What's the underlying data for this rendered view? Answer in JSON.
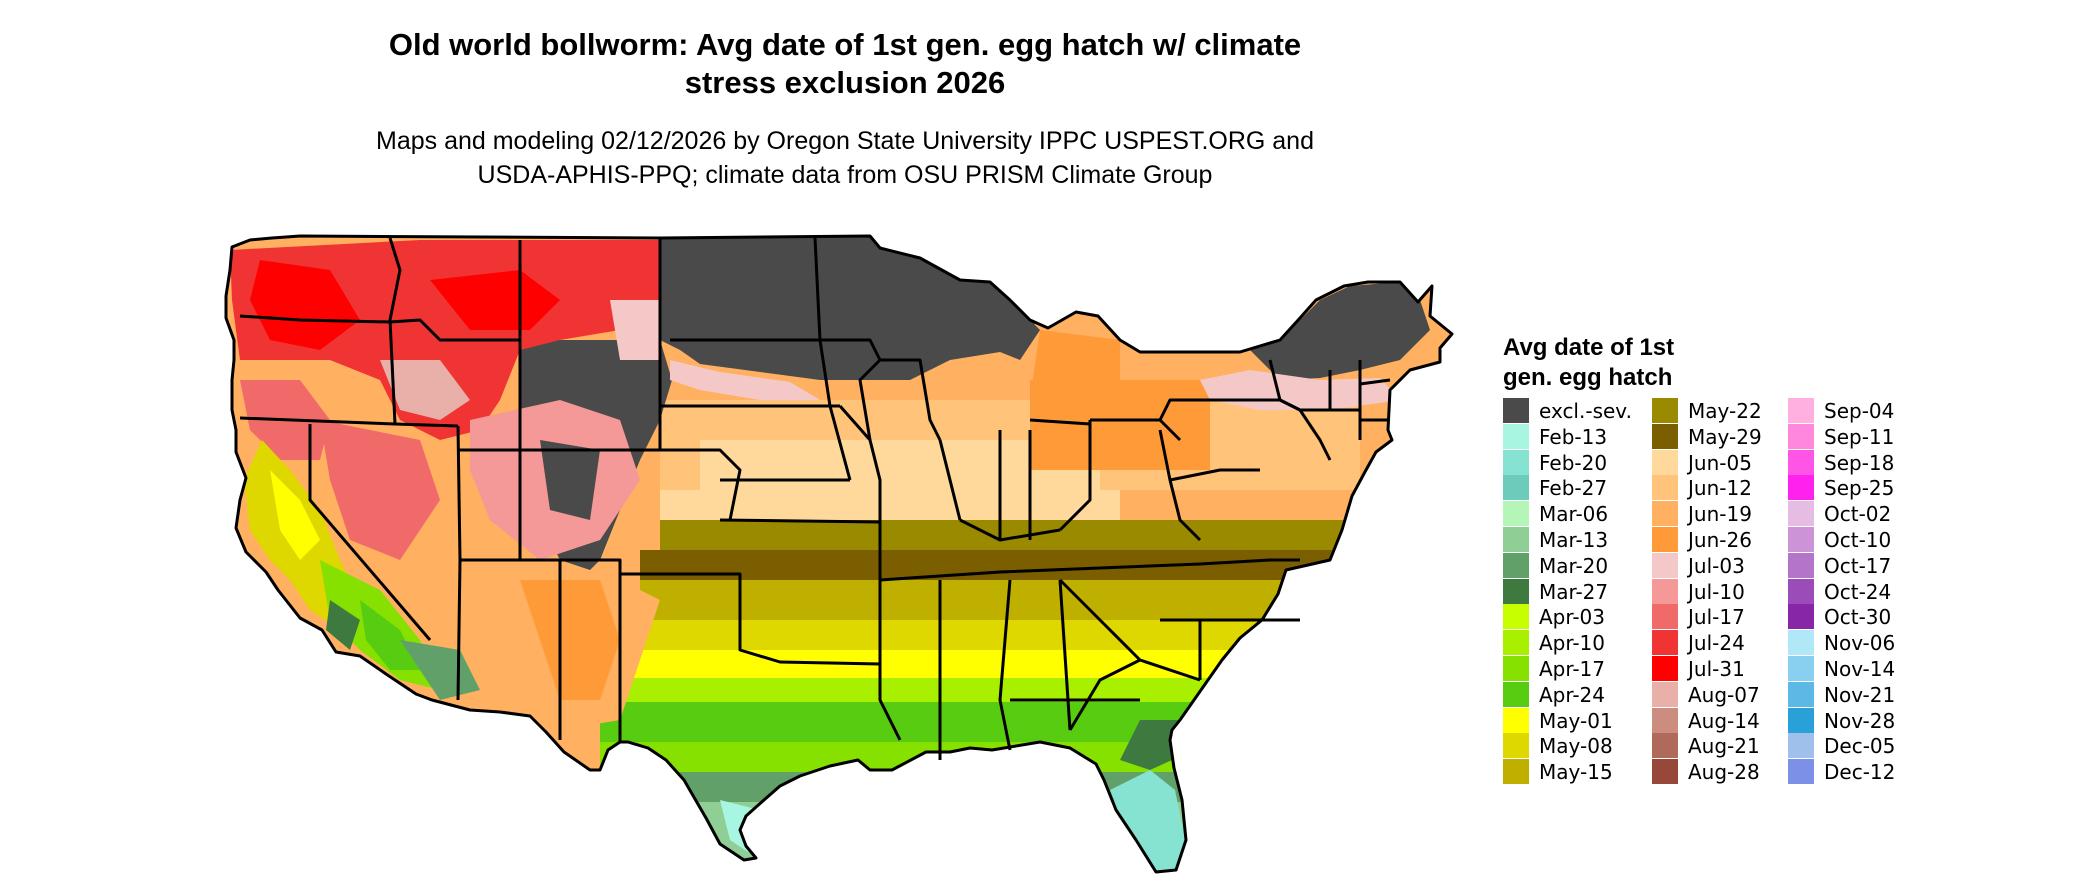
{
  "title": "Old world bollworm: Avg date of 1st gen. egg hatch w/ climate\nstress exclusion 2026",
  "subtitle": "Maps and modeling 02/12/2026 by Oregon State University IPPC USPEST.ORG and\nUSDA-APHIS-PPQ; climate data from OSU PRISM Climate Group",
  "legend": {
    "title": "Avg date of 1st\ngen. egg hatch",
    "columns": [
      [
        {
          "label": "excl.-sev.",
          "color": "#4a4a4a"
        },
        {
          "label": "Feb-13",
          "color": "#a8f5e2"
        },
        {
          "label": "Feb-20",
          "color": "#86e3d2"
        },
        {
          "label": "Feb-27",
          "color": "#6ccbbb"
        },
        {
          "label": "Mar-06",
          "color": "#b6f5b8"
        },
        {
          "label": "Mar-13",
          "color": "#8fcf95"
        },
        {
          "label": "Mar-20",
          "color": "#62a06a"
        },
        {
          "label": "Mar-27",
          "color": "#3e7a40"
        },
        {
          "label": "Apr-03",
          "color": "#c8ff00"
        },
        {
          "label": "Apr-10",
          "color": "#a8f000"
        },
        {
          "label": "Apr-17",
          "color": "#86e000"
        },
        {
          "label": "Apr-24",
          "color": "#58cc10"
        },
        {
          "label": "May-01",
          "color": "#ffff00"
        },
        {
          "label": "May-08",
          "color": "#ded700"
        },
        {
          "label": "May-15",
          "color": "#bfb000"
        }
      ],
      [
        {
          "label": "May-22",
          "color": "#9a8a00"
        },
        {
          "label": "May-29",
          "color": "#7a5e00"
        },
        {
          "label": "Jun-05",
          "color": "#ffd99c"
        },
        {
          "label": "Jun-12",
          "color": "#ffc47a"
        },
        {
          "label": "Jun-19",
          "color": "#ffb060"
        },
        {
          "label": "Jun-26",
          "color": "#ff9a38"
        },
        {
          "label": "Jul-03",
          "color": "#f5c8c8"
        },
        {
          "label": "Jul-10",
          "color": "#f49898"
        },
        {
          "label": "Jul-17",
          "color": "#f06a6a"
        },
        {
          "label": "Jul-24",
          "color": "#f03434"
        },
        {
          "label": "Jul-31",
          "color": "#ff0000"
        },
        {
          "label": "Aug-07",
          "color": "#e8b0a8"
        },
        {
          "label": "Aug-14",
          "color": "#cc8c80"
        },
        {
          "label": "Aug-21",
          "color": "#b06a5c"
        },
        {
          "label": "Aug-28",
          "color": "#984838"
        }
      ],
      [
        {
          "label": "Sep-04",
          "color": "#ffb0e0"
        },
        {
          "label": "Sep-11",
          "color": "#ff88dc"
        },
        {
          "label": "Sep-18",
          "color": "#ff55e6"
        },
        {
          "label": "Sep-25",
          "color": "#ff22ee"
        },
        {
          "label": "Oct-02",
          "color": "#e4bce4"
        },
        {
          "label": "Oct-10",
          "color": "#cc94d6"
        },
        {
          "label": "Oct-17",
          "color": "#b474c8"
        },
        {
          "label": "Oct-24",
          "color": "#9c4cb8"
        },
        {
          "label": "Oct-30",
          "color": "#8826a8"
        },
        {
          "label": "Nov-06",
          "color": "#b0e8f8"
        },
        {
          "label": "Nov-14",
          "color": "#88cff0"
        },
        {
          "label": "Nov-21",
          "color": "#5cb8e4"
        },
        {
          "label": "Nov-28",
          "color": "#2aa0d8"
        },
        {
          "label": "Dec-05",
          "color": "#a0c0ec"
        },
        {
          "label": "Dec-12",
          "color": "#7c90e8"
        }
      ]
    ]
  }
}
